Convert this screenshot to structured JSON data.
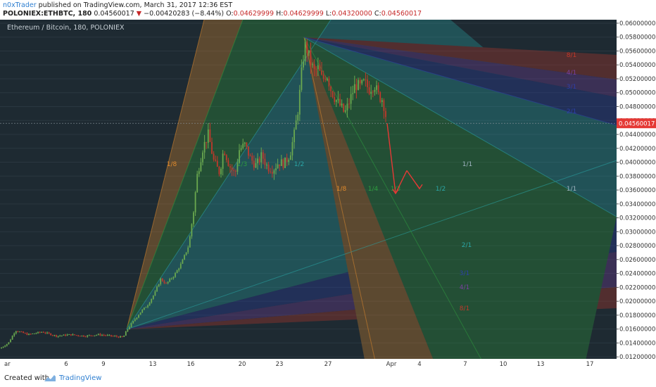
{
  "header": {
    "author": "n0xTrader",
    "published_text": "published on TradingView.com, March 31, 2017 12:36 EST",
    "symbol": "POLONIEX:ETHBTC, 180",
    "price": "0.04560017",
    "change": "−0.00420283 (−8.44%)",
    "o_label": "O:",
    "o_value": "0.04629999",
    "h_label": "H:",
    "h_value": "0.04629999",
    "l_label": "L:",
    "l_value": "0.04320000",
    "c_label": "C:",
    "c_value": "0.04560017"
  },
  "footer": {
    "created_with": "Created with",
    "brand": "TradingView"
  },
  "colors": {
    "background": "#1e2a32",
    "axis_bg": "#ffffff",
    "up": "#6aa84f",
    "down": "#c0392b",
    "price_tag": "#e53935",
    "fan_orange": "#e08a2c",
    "fan_green": "#2e9e3e",
    "fan_teal": "#2aa6a6",
    "fan_blue": "#2d3fa8",
    "fan_purple": "#7a3fa0",
    "fan_red": "#c0392b"
  },
  "chart_data": {
    "type": "candlestick",
    "title": "Ethereum / Bitcoin, 180, POLONIEX",
    "ylim": [
      0.0105,
      0.0605
    ],
    "y_ticks": [
      "0.06000000",
      "0.05800000",
      "0.05600000",
      "0.05400000",
      "0.05200000",
      "0.05000000",
      "0.04800000",
      "0.04600000",
      "0.04400000",
      "0.04200000",
      "0.04000000",
      "0.03800000",
      "0.03600000",
      "0.03400000",
      "0.03200000",
      "0.03000000",
      "0.02800000",
      "0.02600000",
      "0.02400000",
      "0.02200000",
      "0.02000000",
      "0.01800000",
      "0.01600000",
      "0.01400000",
      "0.01200000"
    ],
    "x_ticks": [
      "ar",
      "6",
      "9",
      "13",
      "16",
      "20",
      "23",
      "27",
      "Apr",
      "4",
      "7",
      "10",
      "13",
      "17"
    ],
    "last_price_label": "0.04560017",
    "last_price": 0.04560017,
    "fan_labels": [
      "1/8",
      "1/3",
      "1/2",
      "1/8",
      "1/4",
      "1/3",
      "1/2",
      "1/1",
      "1/1",
      "2/1",
      "3/1",
      "4/1",
      "8/1",
      "3/1",
      "4/1",
      "8/1",
      "2/1"
    ],
    "projection": [
      [
        0.0456,
        0.0355
      ],
      [
        0.0355,
        0.0388
      ],
      [
        0.0388,
        0.0362
      ]
    ],
    "price_keypoints": [
      [
        0,
        0.0132
      ],
      [
        12,
        0.014
      ],
      [
        22,
        0.0158
      ],
      [
        40,
        0.0152
      ],
      [
        60,
        0.0156
      ],
      [
        80,
        0.015
      ],
      [
        100,
        0.0152
      ],
      [
        120,
        0.015
      ],
      [
        140,
        0.0152
      ],
      [
        160,
        0.015
      ],
      [
        175,
        0.0148
      ],
      [
        180,
        0.0158
      ],
      [
        190,
        0.0172
      ],
      [
        200,
        0.0185
      ],
      [
        210,
        0.0195
      ],
      [
        220,
        0.0212
      ],
      [
        228,
        0.0232
      ],
      [
        236,
        0.0225
      ],
      [
        248,
        0.0238
      ],
      [
        258,
        0.0255
      ],
      [
        268,
        0.028
      ],
      [
        275,
        0.033
      ],
      [
        280,
        0.038
      ],
      [
        288,
        0.042
      ],
      [
        296,
        0.044
      ],
      [
        304,
        0.04
      ],
      [
        312,
        0.0385
      ],
      [
        318,
        0.042
      ],
      [
        326,
        0.0395
      ],
      [
        334,
        0.0382
      ],
      [
        340,
        0.0418
      ],
      [
        348,
        0.0425
      ],
      [
        356,
        0.0405
      ],
      [
        364,
        0.0395
      ],
      [
        372,
        0.041
      ],
      [
        380,
        0.0393
      ],
      [
        388,
        0.039
      ],
      [
        396,
        0.04
      ],
      [
        404,
        0.0398
      ],
      [
        412,
        0.0412
      ],
      [
        418,
        0.044
      ],
      [
        424,
        0.048
      ],
      [
        430,
        0.0545
      ],
      [
        434,
        0.057
      ],
      [
        440,
        0.0548
      ],
      [
        446,
        0.053
      ],
      [
        452,
        0.0535
      ],
      [
        458,
        0.0518
      ],
      [
        464,
        0.0528
      ],
      [
        470,
        0.0505
      ],
      [
        476,
        0.0492
      ],
      [
        484,
        0.048
      ],
      [
        490,
        0.047
      ],
      [
        498,
        0.0492
      ],
      [
        505,
        0.0512
      ],
      [
        512,
        0.0508
      ],
      [
        518,
        0.0515
      ],
      [
        524,
        0.0505
      ],
      [
        532,
        0.0512
      ],
      [
        538,
        0.0495
      ],
      [
        544,
        0.049
      ],
      [
        550,
        0.0456
      ]
    ]
  }
}
